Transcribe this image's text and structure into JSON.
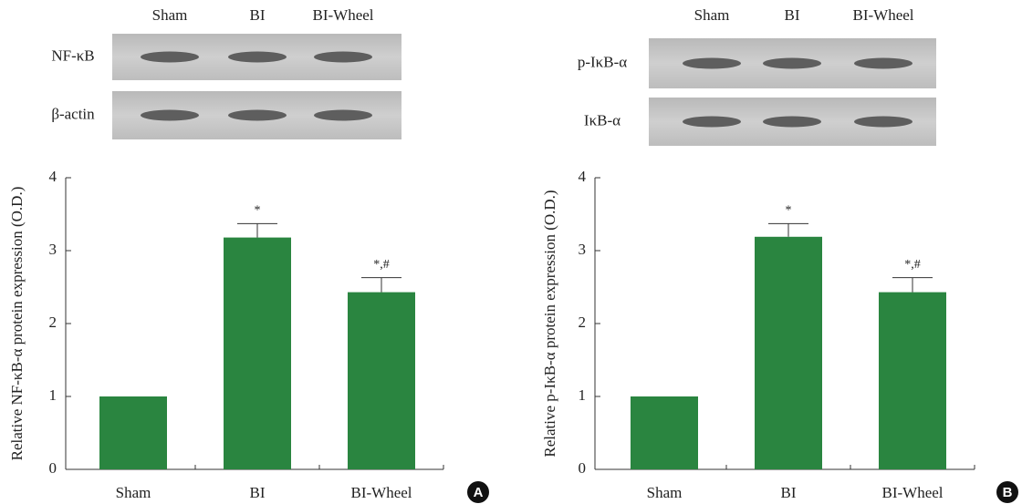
{
  "chart_data": [
    {
      "type": "bar",
      "panel": "A",
      "blot": {
        "lanes": [
          "Sham",
          "BI",
          "BI-Wheel"
        ],
        "rows": [
          "NF-κB",
          "β-actin"
        ]
      },
      "ylabel": "Relative NF-κB-α protein expression (O.D.)",
      "categories": [
        "Sham",
        "BI",
        "BI-Wheel"
      ],
      "values": [
        1,
        3.18,
        2.43
      ],
      "errors": [
        null,
        0.19,
        0.2
      ],
      "annotations": [
        null,
        "*",
        "*,#"
      ],
      "color": "#2a8540",
      "ylim": [
        0,
        4
      ],
      "yticks": [
        0,
        1,
        2,
        3,
        4
      ]
    },
    {
      "type": "bar",
      "panel": "B",
      "blot": {
        "lanes": [
          "Sham",
          "BI",
          "BI-Wheel"
        ],
        "rows": [
          "p-IκB-α",
          "IκB-α"
        ]
      },
      "ylabel": "Relative p-IκB-α protein expression (O.D.)",
      "categories": [
        "Sham",
        "BI",
        "BI-Wheel"
      ],
      "values": [
        1,
        3.19,
        2.43
      ],
      "errors": [
        null,
        0.18,
        0.2
      ],
      "annotations": [
        null,
        "*",
        "*,#"
      ],
      "color": "#2a8540",
      "ylim": [
        0,
        4
      ],
      "yticks": [
        0,
        1,
        2,
        3,
        4
      ]
    }
  ]
}
